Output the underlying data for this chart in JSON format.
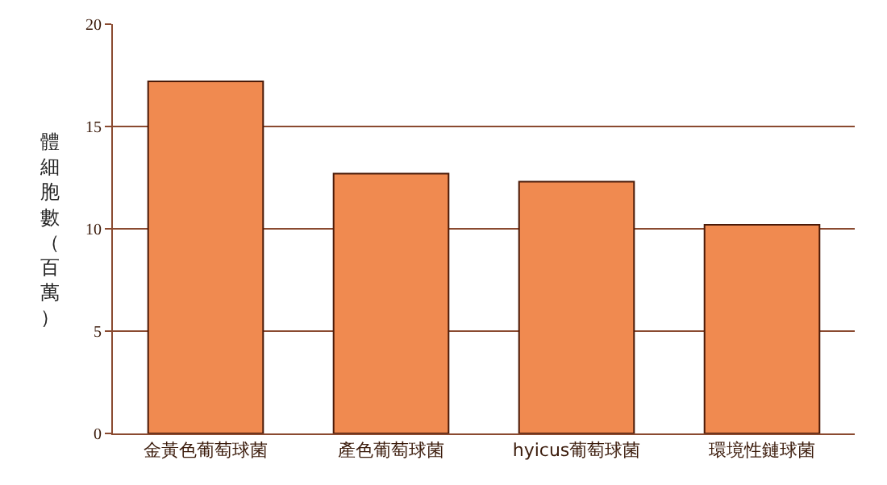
{
  "chart_data": {
    "type": "bar",
    "ylabel": "體細胞數（百萬）",
    "categories": [
      "金黃色葡萄球菌",
      "產色葡萄球菌",
      "hyicus葡萄球菌",
      "環境性鏈球菌"
    ],
    "values": [
      17.2,
      12.7,
      12.3,
      10.2
    ],
    "color": "#f08a50",
    "ylim": [
      0,
      20
    ],
    "yticks": [
      0,
      5,
      10,
      15,
      20
    ],
    "grid": "y"
  }
}
